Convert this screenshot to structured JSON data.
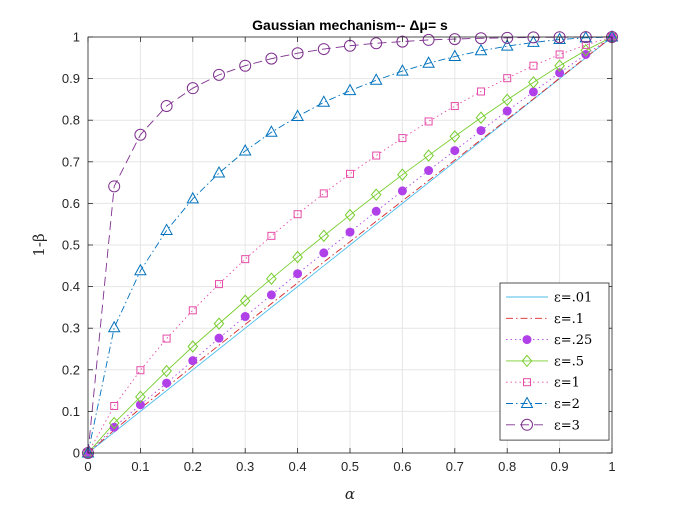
{
  "chart_data": {
    "type": "line",
    "title": "Gaussian mechanism-- Δμ= s",
    "xlabel": "α",
    "ylabel": "1-β",
    "xlim": [
      0,
      1
    ],
    "ylim": [
      0,
      1
    ],
    "xticks": [
      "0",
      "0.1",
      "0.2",
      "0.3",
      "0.4",
      "0.5",
      "0.6",
      "0.7",
      "0.8",
      "0.9",
      "1"
    ],
    "yticks": [
      "0",
      "0.1",
      "0.2",
      "0.3",
      "0.4",
      "0.5",
      "0.6",
      "0.7",
      "0.8",
      "0.9",
      "1"
    ],
    "grid": true,
    "legend_position": "bottom-right",
    "x": [
      0,
      0.05,
      0.1,
      0.15,
      0.2,
      0.25,
      0.3,
      0.35,
      0.4,
      0.45,
      0.5,
      0.55,
      0.6,
      0.65,
      0.7,
      0.75,
      0.8,
      0.85,
      0.9,
      0.95,
      1
    ],
    "series": [
      {
        "name": "ε=.01",
        "color": "#4dbeee",
        "style": "solid",
        "marker": "none",
        "values": [
          0,
          0.05,
          0.1,
          0.15,
          0.2,
          0.25,
          0.3,
          0.35,
          0.4,
          0.45,
          0.5,
          0.55,
          0.6,
          0.65,
          0.7,
          0.75,
          0.8,
          0.85,
          0.9,
          0.95,
          1
        ]
      },
      {
        "name": "ε=.1",
        "color": "#d62728",
        "style": "dashdot",
        "marker": "none",
        "values": [
          0,
          0.055,
          0.107,
          0.158,
          0.209,
          0.259,
          0.309,
          0.359,
          0.409,
          0.459,
          0.508,
          0.557,
          0.606,
          0.655,
          0.704,
          0.753,
          0.802,
          0.851,
          0.901,
          0.951,
          1
        ]
      },
      {
        "name": "ε=.25",
        "color": "#b041e8",
        "style": "dotted",
        "marker": "dot",
        "values": [
          0,
          0.062,
          0.116,
          0.168,
          0.222,
          0.276,
          0.328,
          0.38,
          0.431,
          0.481,
          0.531,
          0.581,
          0.63,
          0.679,
          0.727,
          0.775,
          0.822,
          0.868,
          0.914,
          0.958,
          1
        ]
      },
      {
        "name": "ε=.5",
        "color": "#77ce2e",
        "style": "solid",
        "marker": "diamond",
        "values": [
          0,
          0.072,
          0.135,
          0.197,
          0.256,
          0.311,
          0.366,
          0.419,
          0.471,
          0.522,
          0.572,
          0.621,
          0.669,
          0.715,
          0.761,
          0.806,
          0.849,
          0.891,
          0.931,
          0.968,
          1
        ]
      },
      {
        "name": "ε=1",
        "color": "#e64ca8",
        "style": "dotted",
        "marker": "square",
        "values": [
          0,
          0.113,
          0.199,
          0.275,
          0.343,
          0.406,
          0.466,
          0.522,
          0.574,
          0.624,
          0.671,
          0.715,
          0.757,
          0.797,
          0.834,
          0.869,
          0.901,
          0.931,
          0.958,
          0.981,
          1
        ]
      },
      {
        "name": "ε=2",
        "color": "#0072bd",
        "style": "dashdot",
        "marker": "triangle",
        "values": [
          0,
          0.301,
          0.438,
          0.535,
          0.611,
          0.673,
          0.726,
          0.771,
          0.809,
          0.843,
          0.871,
          0.896,
          0.918,
          0.937,
          0.953,
          0.967,
          0.978,
          0.987,
          0.994,
          0.998,
          1
        ]
      },
      {
        "name": "ε=3",
        "color": "#7e2f8e",
        "style": "dashed",
        "marker": "circle",
        "values": [
          0,
          0.641,
          0.765,
          0.834,
          0.877,
          0.909,
          0.931,
          0.948,
          0.961,
          0.971,
          0.979,
          0.985,
          0.989,
          0.993,
          0.995,
          0.997,
          0.998,
          0.999,
          0.9995,
          0.9998,
          1
        ]
      }
    ]
  }
}
